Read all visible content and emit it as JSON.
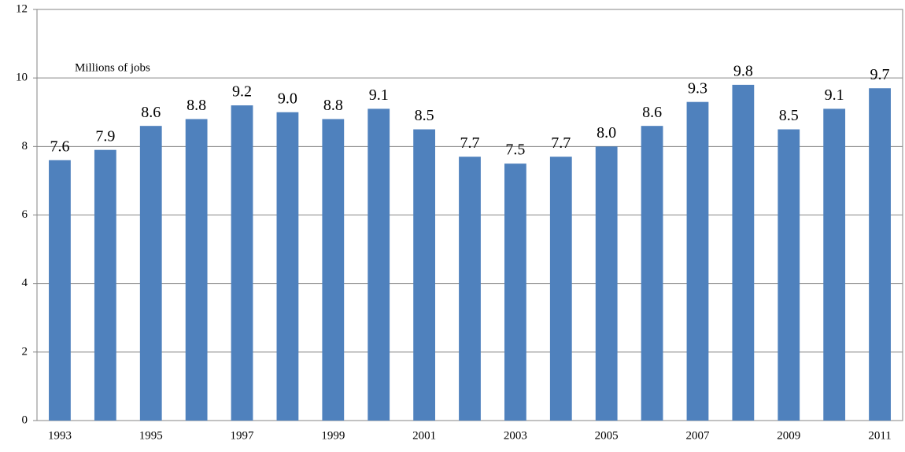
{
  "chart_data": {
    "type": "bar",
    "annotation": "Millions of jobs",
    "categories": [
      "1993",
      null,
      "1995",
      null,
      "1997",
      null,
      "1999",
      null,
      "2001",
      null,
      "2003",
      null,
      "2005",
      null,
      "2007",
      null,
      "2009",
      null,
      "2011"
    ],
    "values": [
      7.6,
      7.9,
      8.6,
      8.8,
      9.2,
      9.0,
      8.8,
      9.1,
      8.5,
      7.7,
      7.5,
      7.7,
      8.0,
      8.6,
      9.3,
      9.8,
      8.5,
      9.1,
      9.7
    ],
    "value_labels": [
      "7.6",
      "7.9",
      "8.6",
      "8.8",
      "9.2",
      "9.0",
      "8.8",
      "9.1",
      "8.5",
      "7.7",
      "7.5",
      "7.7",
      "8.0",
      "8.6",
      "9.3",
      "9.8",
      "8.5",
      "9.1",
      "9.7"
    ],
    "color": "#4f81bd",
    "ylim": [
      0,
      12
    ],
    "yticks": [
      0,
      2,
      4,
      6,
      8,
      10,
      12
    ],
    "grid": true
  }
}
